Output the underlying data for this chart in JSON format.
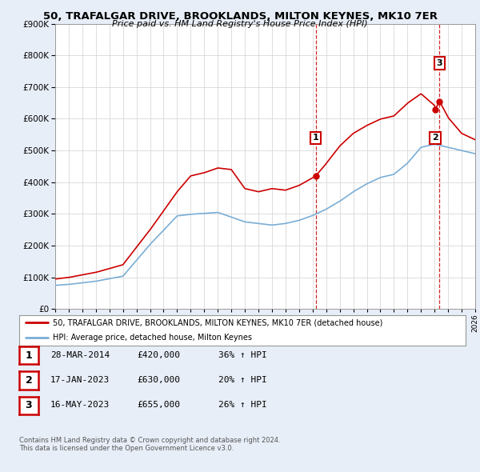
{
  "title": "50, TRAFALGAR DRIVE, BROOKLANDS, MILTON KEYNES, MK10 7ER",
  "subtitle": "Price paid vs. HM Land Registry's House Price Index (HPI)",
  "ylim": [
    0,
    900000
  ],
  "xlim_start": 1995,
  "xlim_end": 2026,
  "red_line_color": "#cc0000",
  "blue_line_color": "#7aaed6",
  "vline_color": "#cc0000",
  "sale_dates": [
    2014.23,
    2023.04,
    2023.37
  ],
  "sale_prices": [
    420000,
    630000,
    655000
  ],
  "sale_labels": [
    "1",
    "2",
    "3"
  ],
  "vline_dates": [
    2014.23,
    2023.37
  ],
  "legend_label_red": "50, TRAFALGAR DRIVE, BROOKLANDS, MILTON KEYNES, MK10 7ER (detached house)",
  "legend_label_blue": "HPI: Average price, detached house, Milton Keynes",
  "table_rows": [
    [
      "1",
      "28-MAR-2014",
      "£420,000",
      "36% ↑ HPI"
    ],
    [
      "2",
      "17-JAN-2023",
      "£630,000",
      "20% ↑ HPI"
    ],
    [
      "3",
      "16-MAY-2023",
      "£655,000",
      "26% ↑ HPI"
    ]
  ],
  "footer": "Contains HM Land Registry data © Crown copyright and database right 2024.\nThis data is licensed under the Open Government Licence v3.0.",
  "background_color": "#e8eef8",
  "plot_bg_color": "#ffffff"
}
